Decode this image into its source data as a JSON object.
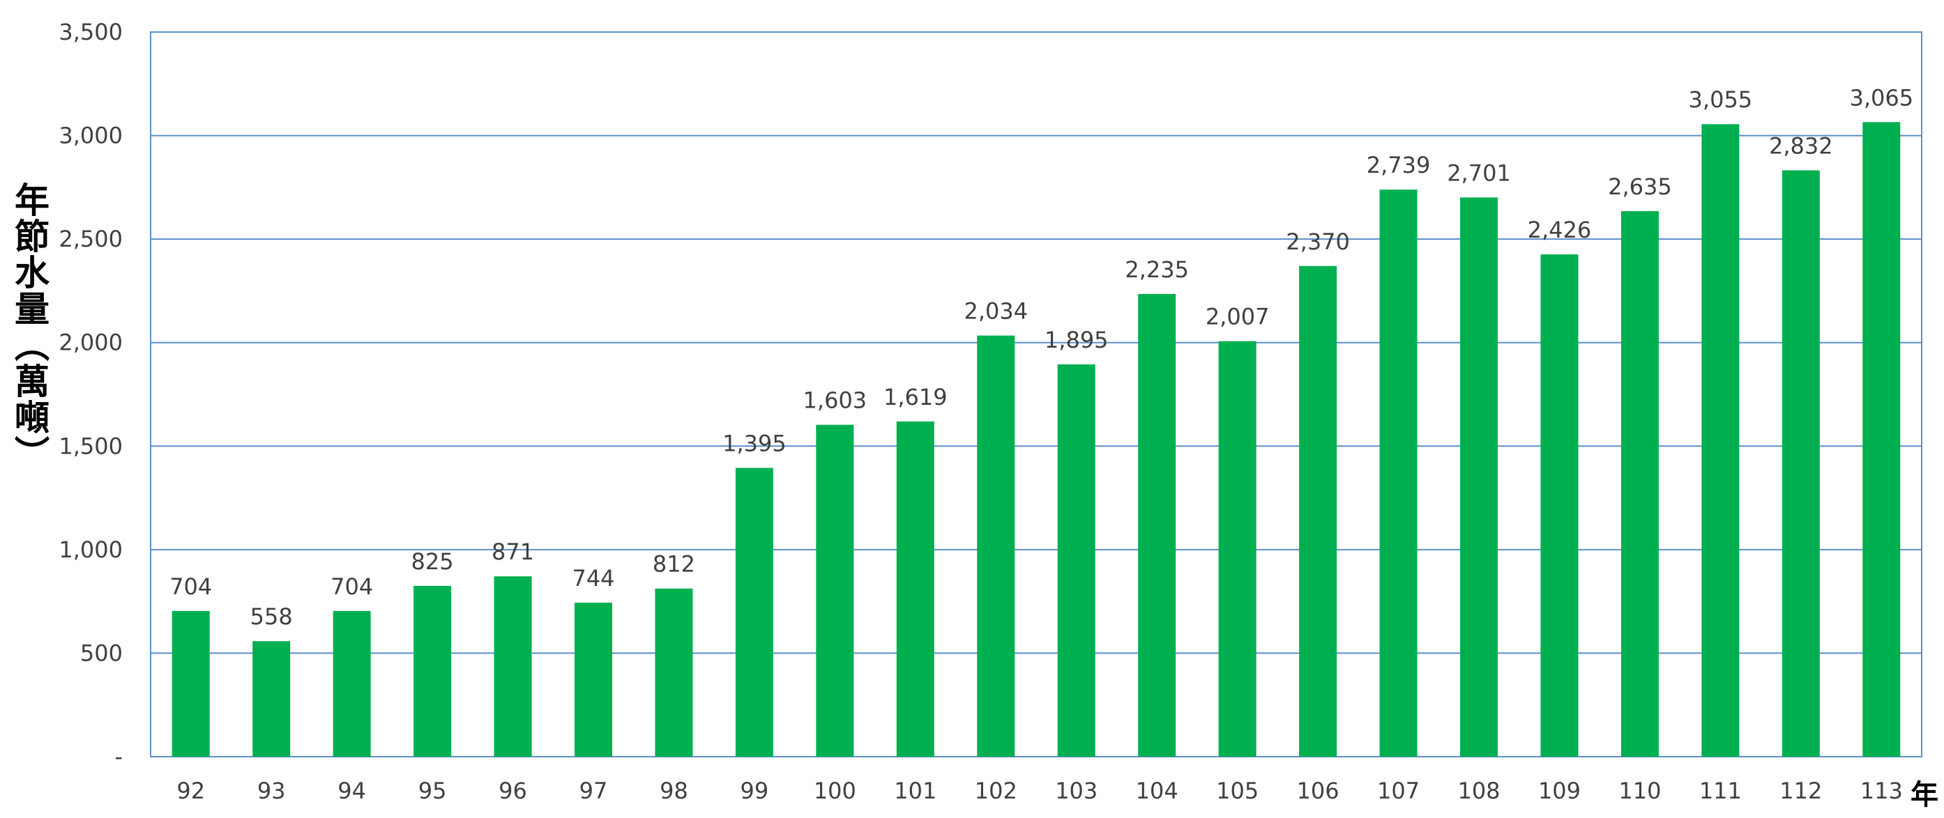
{
  "chart_data": {
    "type": "bar",
    "title": "",
    "ylabel": "年節水量（萬噸）",
    "xlabel": "年",
    "categories": [
      "92",
      "93",
      "94",
      "95",
      "96",
      "97",
      "98",
      "99",
      "100",
      "101",
      "102",
      "103",
      "104",
      "105",
      "106",
      "107",
      "108",
      "109",
      "110",
      "111",
      "112",
      "113"
    ],
    "values": [
      704,
      558,
      704,
      825,
      871,
      744,
      812,
      1395,
      1603,
      1619,
      2034,
      1895,
      2235,
      2007,
      2370,
      2739,
      2701,
      2426,
      2635,
      3055,
      2832,
      3065
    ],
    "value_labels": [
      "704",
      "558",
      "704",
      "825",
      "871",
      "744",
      "812",
      "1,395",
      "1,603",
      "1,619",
      "2,034",
      "1,895",
      "2,235",
      "2,007",
      "2,370",
      "2,739",
      "2,701",
      "2,426",
      "2,635",
      "3,055",
      "2,832",
      "3,065"
    ],
    "ylim": [
      0,
      3500
    ],
    "yticks": [
      0,
      500,
      1000,
      1500,
      2000,
      2500,
      3000,
      3500
    ],
    "ytick_labels": [
      "-",
      "500",
      "1,000",
      "1,500",
      "2,000",
      "2,500",
      "3,000",
      "3,500"
    ],
    "grid": true,
    "legend": "none",
    "bar_color": "#00B050",
    "grid_color": "#5B8FC9"
  }
}
